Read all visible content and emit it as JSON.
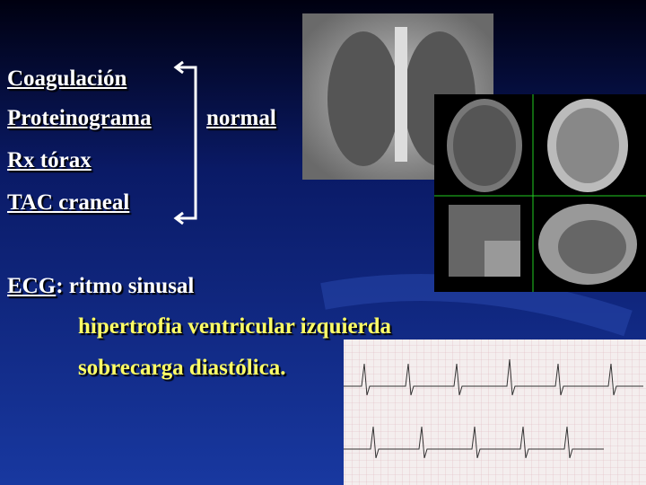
{
  "items": [
    {
      "text": "Coagulación"
    },
    {
      "text": "Proteinograma"
    },
    {
      "text": "Rx tórax"
    },
    {
      "text": "TAC craneal"
    }
  ],
  "result": "normal",
  "ecg": {
    "label": "ECG",
    "finding": ": ritmo sinusal",
    "details": [
      "hipertrofia ventricular izquierda",
      "sobrecarga diastólica."
    ]
  }
}
